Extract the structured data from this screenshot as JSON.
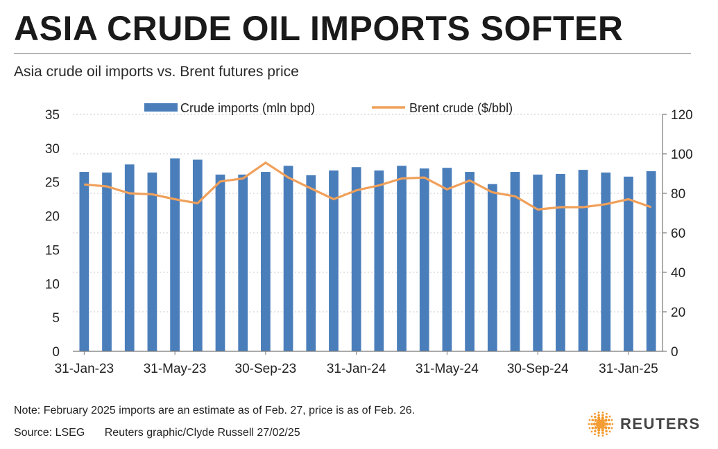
{
  "title": "ASIA CRUDE OIL IMPORTS SOFTER",
  "subtitle": "Asia crude oil imports vs. Brent futures price",
  "note": "Note: February 2025 imports are an estimate as of Feb. 27, price is as of Feb. 26.",
  "source": "Source: LSEG",
  "credit": "Reuters graphic/Clyde Russell 27/02/25",
  "logo": {
    "text": "REUTERS",
    "icon": "reuters-dot-logo",
    "color": "#f39c32"
  },
  "colors": {
    "bars": "#4a7ebb",
    "line": "#f0a05a",
    "grid": "#c8c8c8",
    "axis": "#777777"
  },
  "chart_data": {
    "type": "bar+line",
    "x": [
      "31-Jan-23",
      "28-Feb-23",
      "31-Mar-23",
      "30-Apr-23",
      "31-May-23",
      "30-Jun-23",
      "31-Jul-23",
      "31-Aug-23",
      "30-Sep-23",
      "31-Oct-23",
      "30-Nov-23",
      "31-Dec-23",
      "31-Jan-24",
      "29-Feb-24",
      "31-Mar-24",
      "30-Apr-24",
      "31-May-24",
      "30-Jun-24",
      "31-Jul-24",
      "31-Aug-24",
      "30-Sep-24",
      "31-Oct-24",
      "30-Nov-24",
      "31-Dec-24",
      "31-Jan-25",
      "28-Feb-25"
    ],
    "x_tick_labels": [
      "31-Jan-23",
      "31-May-23",
      "30-Sep-23",
      "31-Jan-24",
      "31-May-24",
      "30-Sep-24",
      "31-Jan-25"
    ],
    "x_tick_indices": [
      0,
      4,
      8,
      12,
      16,
      20,
      24
    ],
    "series": [
      {
        "name": "Crude imports (mln bpd)",
        "axis": "left",
        "type": "bar",
        "values": [
          26.5,
          26.4,
          27.6,
          26.4,
          28.5,
          28.3,
          26.1,
          26.1,
          26.5,
          27.4,
          26.0,
          26.7,
          27.2,
          26.7,
          27.4,
          27.0,
          27.1,
          26.5,
          24.7,
          26.5,
          26.1,
          26.2,
          26.8,
          26.4,
          25.8,
          26.6
        ]
      },
      {
        "name": "Brent crude ($/bbl)",
        "axis": "right",
        "type": "line",
        "values": [
          84.5,
          83.5,
          80,
          79.5,
          77,
          75,
          86,
          87.5,
          95.5,
          88,
          82.5,
          77,
          81.5,
          84,
          87.5,
          88,
          82,
          86.5,
          80.5,
          78.5,
          71.8,
          73,
          73,
          74.5,
          77,
          73
        ]
      }
    ],
    "y_left": {
      "min": 0,
      "max": 35,
      "ticks": [
        0,
        5,
        10,
        15,
        20,
        25,
        30,
        35
      ]
    },
    "y_right": {
      "min": 0,
      "max": 120,
      "ticks": [
        0,
        20,
        40,
        60,
        80,
        100,
        120
      ]
    },
    "grid": true,
    "legend_position": "top"
  }
}
